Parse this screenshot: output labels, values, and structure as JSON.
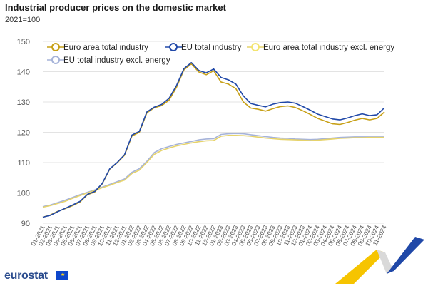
{
  "chart_data": {
    "type": "line",
    "title": "Industrial producer prices on the domestic market",
    "subtitle": "2021=100",
    "xlabel": "",
    "ylabel": "",
    "ylim": [
      90,
      150
    ],
    "yticks": [
      90,
      100,
      110,
      120,
      130,
      140,
      150
    ],
    "grid": true,
    "legend_position": "top",
    "x": [
      "01-2021",
      "02-2021",
      "03-2021",
      "04-2021",
      "05-2021",
      "06-2021",
      "07-2021",
      "08-2021",
      "09-2021",
      "10-2021",
      "11-2021",
      "12-2021",
      "01-2022",
      "02-2022",
      "03-2022",
      "04-2022",
      "05-2022",
      "06-2022",
      "07-2022",
      "08-2022",
      "09-2022",
      "10-2022",
      "11-2022",
      "12-2022",
      "01-2023",
      "02-2023",
      "03-2023",
      "04-2023",
      "05-2023",
      "06-2023",
      "07-2023",
      "08-2023",
      "09-2023",
      "10-2023",
      "11-2023",
      "12-2023",
      "01-2024",
      "02-2024",
      "03-2024",
      "04-2024",
      "05-2024",
      "06-2024",
      "07-2024",
      "08-2024",
      "09-2024",
      "10-2024",
      "11-2024"
    ],
    "series": [
      {
        "name": "Euro area total industry",
        "color": "#c7a017",
        "marker": "#c7a017",
        "values": [
          92.0,
          92.7,
          93.9,
          94.8,
          95.8,
          97.0,
          99.4,
          100.3,
          103.0,
          107.8,
          109.9,
          112.4,
          118.8,
          120.0,
          126.4,
          128.1,
          128.8,
          130.6,
          134.8,
          140.6,
          142.6,
          139.9,
          139.0,
          140.3,
          136.6,
          135.9,
          134.4,
          130.0,
          128.0,
          127.6,
          127.0,
          127.8,
          128.5,
          128.7,
          128.2,
          127.1,
          125.9,
          124.6,
          123.7,
          122.8,
          122.6,
          123.2,
          124.0,
          124.6,
          124.1,
          124.6,
          126.7
        ]
      },
      {
        "name": "EU total industry",
        "color": "#2048a8",
        "marker": "#2048a8",
        "values": [
          92.0,
          92.6,
          93.8,
          94.9,
          96.0,
          97.2,
          99.5,
          100.5,
          103.1,
          107.9,
          110.0,
          112.6,
          119.1,
          120.3,
          126.7,
          128.3,
          129.2,
          131.2,
          135.4,
          141.0,
          143.0,
          140.4,
          139.6,
          140.9,
          138.1,
          137.3,
          135.9,
          132.0,
          129.5,
          128.9,
          128.4,
          129.3,
          129.8,
          130.0,
          129.6,
          128.5,
          127.3,
          126.0,
          125.2,
          124.4,
          124.1,
          124.7,
          125.5,
          126.1,
          125.5,
          125.8,
          128.1
        ]
      },
      {
        "name": "Euro area total industry excl. energy",
        "color": "#e6d36b",
        "marker": "#f3e46f",
        "values": [
          95.3,
          95.8,
          96.5,
          97.2,
          98.2,
          99.1,
          100.0,
          100.8,
          101.7,
          102.5,
          103.4,
          104.2,
          106.4,
          107.5,
          110.0,
          112.7,
          114.0,
          114.8,
          115.5,
          116.0,
          116.5,
          116.9,
          117.2,
          117.3,
          118.7,
          119.0,
          119.0,
          118.9,
          118.7,
          118.4,
          118.1,
          117.9,
          117.7,
          117.6,
          117.5,
          117.4,
          117.3,
          117.4,
          117.6,
          117.8,
          118.0,
          118.1,
          118.2,
          118.2,
          118.3,
          118.3,
          118.3
        ]
      },
      {
        "name": "EU total industry excl. energy",
        "color": "#a6b3d9",
        "marker": "#a6b3d9",
        "values": [
          95.5,
          96.0,
          96.8,
          97.6,
          98.5,
          99.4,
          100.2,
          101.0,
          101.9,
          102.8,
          103.7,
          104.6,
          106.8,
          108.0,
          110.4,
          113.3,
          114.6,
          115.3,
          116.0,
          116.5,
          117.0,
          117.5,
          117.8,
          117.9,
          119.3,
          119.5,
          119.6,
          119.5,
          119.2,
          118.9,
          118.6,
          118.3,
          118.1,
          118.0,
          117.8,
          117.7,
          117.6,
          117.7,
          117.9,
          118.1,
          118.3,
          118.4,
          118.5,
          118.5,
          118.5,
          118.5,
          118.5
        ]
      }
    ]
  },
  "branding": {
    "logo_text": "eurostat"
  }
}
